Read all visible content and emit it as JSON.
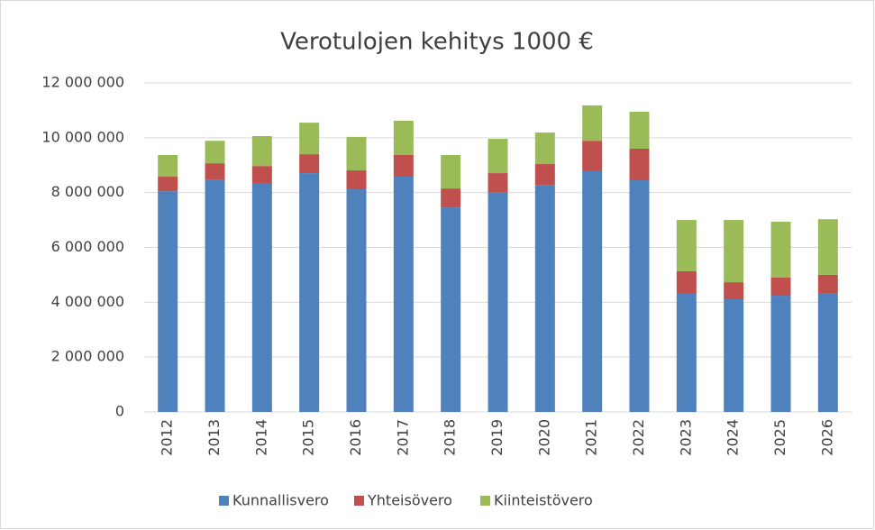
{
  "chart_data": {
    "type": "stacked_bar",
    "title": "Verotulojen kehitys 1000 €",
    "categories": [
      "2012",
      "2013",
      "2014",
      "2015",
      "2016",
      "2017",
      "2018",
      "2019",
      "2020",
      "2021",
      "2022",
      "2023",
      "2024",
      "2025",
      "2026"
    ],
    "series": [
      {
        "name": "Kunnallisvero",
        "color": "#4f81bd",
        "values": [
          8050000,
          8480000,
          8320000,
          8710000,
          8120000,
          8580000,
          7460000,
          8020000,
          8280000,
          8810000,
          8450000,
          4340000,
          4110000,
          4240000,
          4310000
        ]
      },
      {
        "name": "Yhteisövero",
        "color": "#c0504d",
        "values": [
          530000,
          590000,
          650000,
          690000,
          690000,
          790000,
          690000,
          690000,
          760000,
          1080000,
          1150000,
          790000,
          620000,
          660000,
          690000
        ]
      },
      {
        "name": "Kiinteistövero",
        "color": "#9bbb59",
        "values": [
          790000,
          820000,
          1090000,
          1150000,
          1220000,
          1250000,
          1220000,
          1250000,
          1150000,
          1290000,
          1350000,
          1870000,
          2270000,
          2040000,
          2030000
        ]
      }
    ],
    "ylim": [
      0,
      12000000
    ],
    "yticks": [
      0,
      {
        "value": 2000000,
        "label": "2 000 000"
      },
      {
        "value": 4000000,
        "label": "4 000 000"
      },
      {
        "value": 6000000,
        "label": "6 000 000"
      },
      {
        "value": 8000000,
        "label": "8 000 000"
      },
      {
        "value": 10000000,
        "label": "10 000 000"
      },
      {
        "value": 12000000,
        "label": "12 000 000"
      }
    ],
    "grid": true,
    "legend": "bottom"
  }
}
